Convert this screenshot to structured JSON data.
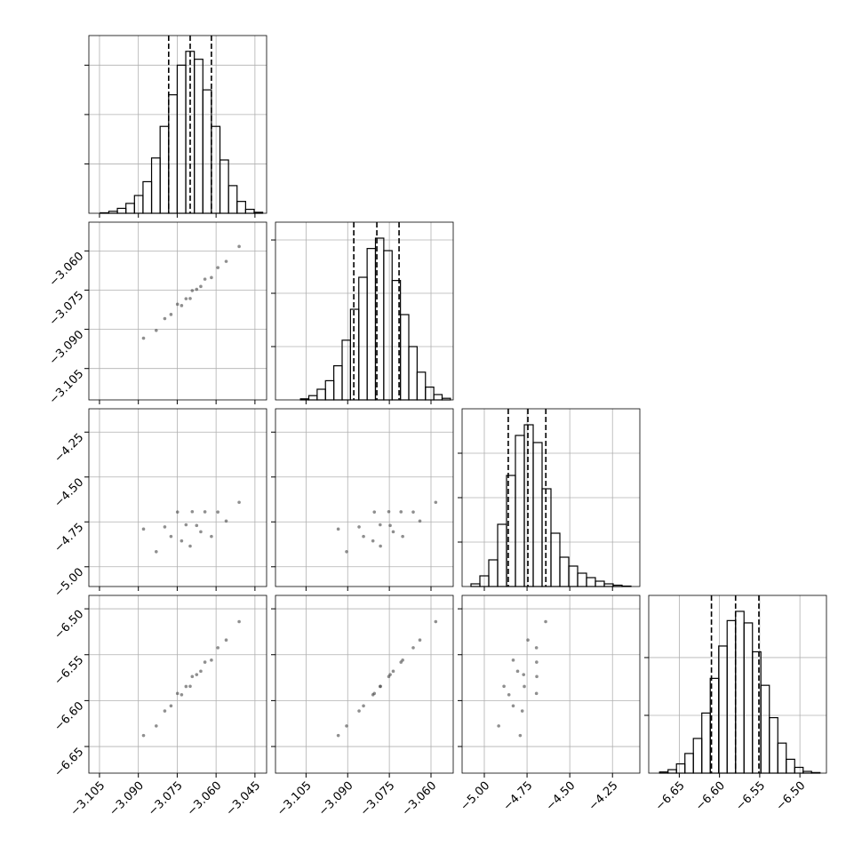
{
  "chart_data": [
    {
      "type": "histogram",
      "bins": [
        -3.108,
        -3.1047,
        -3.1014,
        -3.0981,
        -3.0948,
        -3.0915,
        -3.0882,
        -3.0849,
        -3.0816,
        -3.0783,
        -3.075,
        -3.0717,
        -3.0684,
        -3.0651,
        -3.0618,
        -3.0585,
        -3.0552,
        -3.0519,
        -3.0486,
        -3.0453,
        -3.042
      ],
      "values": [
        0,
        5,
        20,
        50,
        100,
        180,
        320,
        560,
        880,
        1200,
        1500,
        1640,
        1560,
        1250,
        880,
        540,
        280,
        120,
        40,
        10
      ],
      "quantiles": [
        -3.0783,
        -3.07,
        -3.0618
      ],
      "xlim": [
        -3.1091,
        -3.0405
      ],
      "xticks": [
        -3.105,
        -3.09,
        -3.075,
        -3.06,
        -3.045
      ],
      "ylim": [
        0,
        1800
      ],
      "yticks": [
        500,
        1000,
        1500
      ],
      "grid": true
    },
    {
      "type": "scatter",
      "x": [
        -3.088,
        -3.0831,
        -3.0798,
        -3.0774,
        -3.0749,
        -3.0733,
        -3.0716,
        -3.07,
        -3.0692,
        -3.0675,
        -3.0659,
        -3.0643,
        -3.0618,
        -3.0593,
        -3.0561,
        -3.0511
      ],
      "values": [
        -3.0934,
        -3.0904,
        -3.0859,
        -3.0843,
        -3.0804,
        -3.0809,
        -3.0783,
        -3.0782,
        -3.0752,
        -3.0747,
        -3.0736,
        -3.0708,
        -3.0702,
        -3.0664,
        -3.064,
        -3.0583
      ],
      "xlim": [
        -3.1091,
        -3.0405
      ],
      "xticks": [
        -3.105,
        -3.09,
        -3.075,
        -3.06,
        -3.045
      ],
      "ylim": [
        -3.117,
        -3.049
      ],
      "yticks": [
        {
          "value": -3.06,
          "label": "−3.060"
        },
        {
          "value": -3.075,
          "label": "−3.075"
        },
        {
          "value": -3.09,
          "label": "−3.090"
        },
        {
          "value": -3.105,
          "label": "−3.105"
        }
      ],
      "grid": true
    },
    {
      "type": "histogram",
      "bins": [
        -3.113,
        -3.11,
        -3.107,
        -3.104,
        -3.101,
        -3.098,
        -3.095,
        -3.092,
        -3.089,
        -3.086,
        -3.083,
        -3.08,
        -3.077,
        -3.074,
        -3.071,
        -3.068,
        -3.065,
        -3.062,
        -3.059,
        -3.056,
        -3.053
      ],
      "values": [
        0,
        0,
        10,
        40,
        100,
        180,
        320,
        560,
        850,
        1150,
        1420,
        1517,
        1400,
        1120,
        800,
        500,
        260,
        120,
        50,
        15
      ],
      "quantiles": [
        -3.0878,
        -3.0795,
        -3.0715
      ],
      "xlim": [
        -3.116,
        -3.052
      ],
      "xticks": [
        -3.105,
        -3.09,
        -3.075,
        -3.06
      ],
      "ylim": [
        0,
        1667
      ],
      "yticks": [
        500,
        1000,
        1500
      ],
      "grid": true
    },
    {
      "type": "scatter",
      "x": [
        -3.088,
        -3.0831,
        -3.0798,
        -3.0774,
        -3.0749,
        -3.0733,
        -3.0716,
        -3.07,
        -3.0692,
        -3.0675,
        -3.0659,
        -3.0643,
        -3.0618,
        -3.0593,
        -3.0561,
        -3.0511
      ],
      "values": [
        -4.79,
        -4.916,
        -4.778,
        -4.831,
        -4.695,
        -4.856,
        -4.766,
        -4.885,
        -4.693,
        -4.77,
        -4.805,
        -4.694,
        -4.831,
        -4.695,
        -4.745,
        -4.641
      ],
      "xlim": [
        -3.1091,
        -3.0405
      ],
      "xticks": [
        -3.105,
        -3.09,
        -3.075,
        -3.06,
        -3.045
      ],
      "ylim": [
        -5.11,
        -4.12
      ],
      "yticks": [
        {
          "value": -4.25,
          "label": "−4.25"
        },
        {
          "value": -4.5,
          "label": "−4.50"
        },
        {
          "value": -4.75,
          "label": "−4.75"
        },
        {
          "value": -5,
          "label": "−5.00"
        }
      ],
      "grid": true
    },
    {
      "type": "scatter",
      "x": [
        -3.0934,
        -3.0904,
        -3.0859,
        -3.0843,
        -3.0804,
        -3.0809,
        -3.0783,
        -3.0782,
        -3.0752,
        -3.0747,
        -3.0736,
        -3.0708,
        -3.0702,
        -3.0664,
        -3.064,
        -3.0583
      ],
      "values": [
        -4.79,
        -4.916,
        -4.778,
        -4.831,
        -4.695,
        -4.856,
        -4.766,
        -4.885,
        -4.693,
        -4.77,
        -4.805,
        -4.694,
        -4.831,
        -4.695,
        -4.745,
        -4.641
      ],
      "xlim": [
        -3.116,
        -3.052
      ],
      "xticks": [
        -3.105,
        -3.09,
        -3.075,
        -3.06
      ],
      "ylim": [
        -5.11,
        -4.12
      ],
      "yticks": [
        -4.25,
        -4.5,
        -4.75,
        -5
      ],
      "grid": true
    },
    {
      "type": "histogram",
      "bins": [
        -5.13,
        -5.078,
        -5.026,
        -4.974,
        -4.922,
        -4.87,
        -4.818,
        -4.766,
        -4.714,
        -4.662,
        -4.61,
        -4.558,
        -4.506,
        -4.454,
        -4.402,
        -4.35,
        -4.298,
        -4.246,
        -4.194,
        -4.142,
        -4.09
      ],
      "values": [
        0,
        30,
        120,
        300,
        700,
        1250,
        1700,
        1820,
        1620,
        1100,
        600,
        330,
        230,
        150,
        100,
        60,
        30,
        15,
        5,
        0
      ],
      "quantiles": [
        -4.86,
        -4.745,
        -4.64
      ],
      "xlim": [
        -5.13,
        -4.09
      ],
      "xticks": [
        -5,
        -4.75,
        -4.5,
        -4.25
      ],
      "ylim": [
        0,
        2000
      ],
      "yticks": [
        500,
        1000,
        1500
      ],
      "grid": true
    },
    {
      "type": "scatter",
      "x": [
        -3.088,
        -3.0831,
        -3.0798,
        -3.0774,
        -3.0749,
        -3.0733,
        -3.0716,
        -3.07,
        -3.0692,
        -3.0675,
        -3.0659,
        -3.0643,
        -3.0618,
        -3.0593,
        -3.0561,
        -3.0511
      ],
      "values": [
        -6.638,
        -6.6276,
        -6.6113,
        -6.6057,
        -6.5922,
        -6.5936,
        -6.5846,
        -6.5844,
        -6.5738,
        -6.5717,
        -6.568,
        -6.5581,
        -6.5559,
        -6.5424,
        -6.534,
        -6.514
      ],
      "xlim": [
        -3.1091,
        -3.0405
      ],
      "xticks": [
        {
          "value": -3.105,
          "label": "−3.105"
        },
        {
          "value": -3.09,
          "label": "−3.090"
        },
        {
          "value": -3.075,
          "label": "−3.075"
        },
        {
          "value": -3.06,
          "label": "−3.060"
        },
        {
          "value": -3.045,
          "label": "−3.045"
        }
      ],
      "ylim": [
        -6.679,
        -6.4854
      ],
      "yticks": [
        {
          "value": -6.5,
          "label": "−6.50"
        },
        {
          "value": -6.55,
          "label": "−6.55"
        },
        {
          "value": -6.6,
          "label": "−6.60"
        },
        {
          "value": -6.65,
          "label": "−6.65"
        }
      ],
      "grid": true
    },
    {
      "type": "scatter",
      "x": [
        -3.0934,
        -3.0904,
        -3.0859,
        -3.0843,
        -3.0804,
        -3.0809,
        -3.0783,
        -3.0782,
        -3.0752,
        -3.0747,
        -3.0736,
        -3.0708,
        -3.0702,
        -3.0664,
        -3.064,
        -3.0583
      ],
      "values": [
        -6.638,
        -6.6276,
        -6.6113,
        -6.6057,
        -6.5922,
        -6.5936,
        -6.5846,
        -6.5844,
        -6.5738,
        -6.5717,
        -6.568,
        -6.5581,
        -6.5559,
        -6.5424,
        -6.534,
        -6.514
      ],
      "xlim": [
        -3.116,
        -3.052
      ],
      "xticks": [
        {
          "value": -3.105,
          "label": "−3.105"
        },
        {
          "value": -3.09,
          "label": "−3.090"
        },
        {
          "value": -3.075,
          "label": "−3.075"
        },
        {
          "value": -3.06,
          "label": "−3.060"
        }
      ],
      "ylim": [
        -6.679,
        -6.4854
      ],
      "yticks": [
        -6.5,
        -6.55,
        -6.6,
        -6.65
      ],
      "grid": true
    },
    {
      "type": "scatter",
      "x": [
        -4.79,
        -4.916,
        -4.778,
        -4.831,
        -4.695,
        -4.856,
        -4.766,
        -4.885,
        -4.693,
        -4.77,
        -4.805,
        -4.694,
        -4.831,
        -4.695,
        -4.745,
        -4.641
      ],
      "values": [
        -6.638,
        -6.6276,
        -6.6113,
        -6.6057,
        -6.5922,
        -6.5936,
        -6.5846,
        -6.5844,
        -6.5738,
        -6.5717,
        -6.568,
        -6.5581,
        -6.5559,
        -6.5424,
        -6.534,
        -6.514
      ],
      "xlim": [
        -5.13,
        -4.09
      ],
      "xticks": [
        {
          "value": -5,
          "label": "−5.00"
        },
        {
          "value": -4.75,
          "label": "−4.75"
        },
        {
          "value": -4.5,
          "label": "−4.50"
        },
        {
          "value": -4.25,
          "label": "−4.25"
        }
      ],
      "ylim": [
        -6.679,
        -6.4854
      ],
      "yticks": [
        -6.5,
        -6.55,
        -6.6,
        -6.65
      ],
      "grid": true
    },
    {
      "type": "histogram",
      "bins": [
        -6.685,
        -6.6745,
        -6.664,
        -6.6535,
        -6.643,
        -6.6325,
        -6.622,
        -6.6115,
        -6.601,
        -6.5905,
        -6.58,
        -6.5695,
        -6.559,
        -6.5485,
        -6.538,
        -6.5275,
        -6.517,
        -6.5065,
        -6.496,
        -6.4855,
        -6.475
      ],
      "values": [
        0,
        10,
        30,
        80,
        170,
        300,
        520,
        820,
        1100,
        1320,
        1400,
        1300,
        1050,
        760,
        480,
        260,
        120,
        50,
        15,
        5
      ],
      "quantiles": [
        -6.61,
        -6.58,
        -6.551
      ],
      "xlim": [
        -6.688,
        -6.467
      ],
      "xticks": [
        {
          "value": -6.65,
          "label": "−6.65"
        },
        {
          "value": -6.6,
          "label": "−6.60"
        },
        {
          "value": -6.55,
          "label": "−6.55"
        },
        {
          "value": -6.5,
          "label": "−6.50"
        }
      ],
      "ylim": [
        0,
        1538
      ],
      "yticks": [
        500,
        1000
      ],
      "grid": true
    }
  ]
}
